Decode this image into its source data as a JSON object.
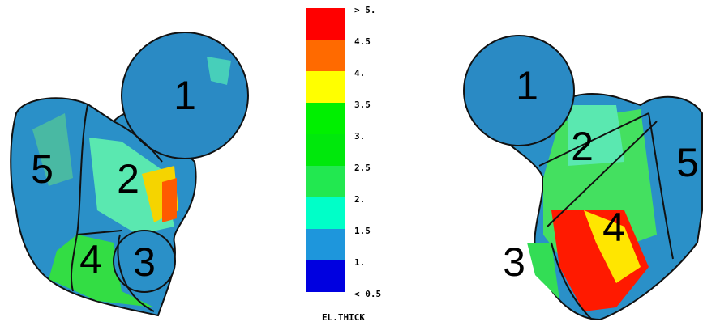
{
  "legend": {
    "title": "EL.THICK",
    "labels": [
      "> 5.",
      "4.5",
      "4.",
      "3.5",
      "3.",
      "2.5",
      "2.",
      "1.5",
      "1.",
      "< 0.5"
    ],
    "colors": [
      "#ff0000",
      "#ff6a00",
      "#ffff00",
      "#00f000",
      "#00e80c",
      "#22e850",
      "#00ffc8",
      "#1e96dc",
      "#0000e0"
    ]
  },
  "views": [
    {
      "labels": [
        "1",
        "5",
        "2",
        "4",
        "3"
      ]
    },
    {
      "labels": [
        "1",
        "2",
        "5",
        "4",
        "3"
      ]
    }
  ]
}
